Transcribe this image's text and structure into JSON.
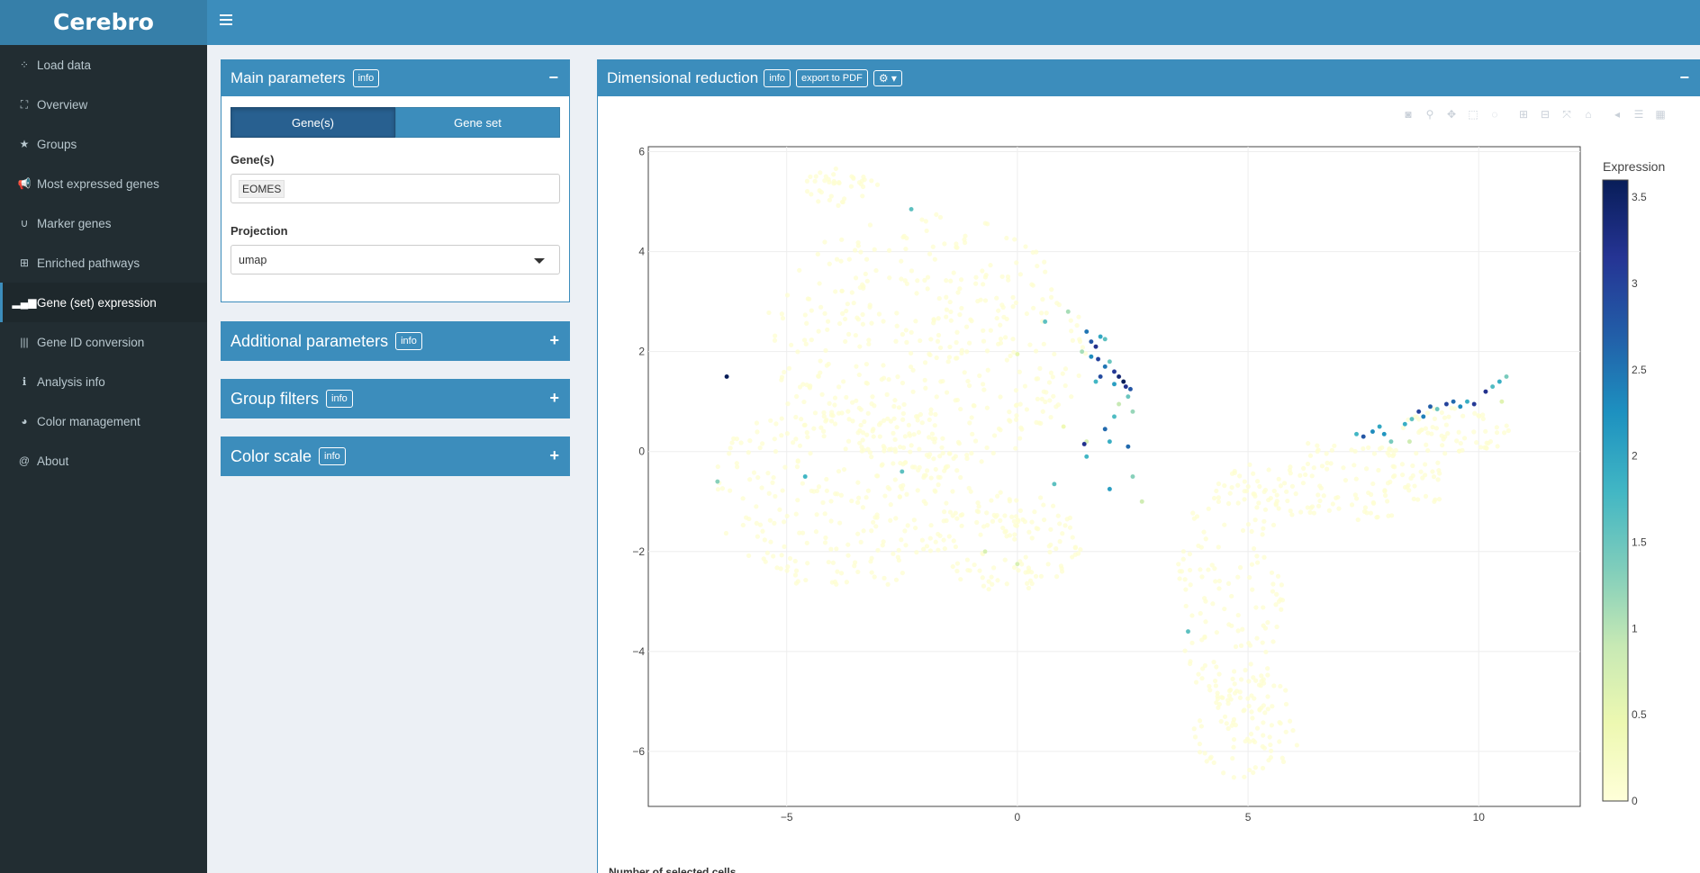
{
  "app": {
    "title": "Cerebro"
  },
  "sidebar": {
    "items": [
      {
        "label": "Load data",
        "icon": "spinner-icon",
        "glyph": "⁘",
        "active": false
      },
      {
        "label": "Overview",
        "icon": "binoculars-icon",
        "glyph": "⛶",
        "active": false
      },
      {
        "label": "Groups",
        "icon": "star-icon",
        "glyph": "★",
        "active": false
      },
      {
        "label": "Most expressed genes",
        "icon": "bullhorn-icon",
        "glyph": "📢",
        "active": false
      },
      {
        "label": "Marker genes",
        "icon": "magnet-icon",
        "glyph": "∪",
        "active": false
      },
      {
        "label": "Enriched pathways",
        "icon": "sitemap-icon",
        "glyph": "⊞",
        "active": false
      },
      {
        "label": "Gene (set) expression",
        "icon": "signal-icon",
        "glyph": "▂▄▆",
        "active": true
      },
      {
        "label": "Gene ID conversion",
        "icon": "barcode-icon",
        "glyph": "|||",
        "active": false
      },
      {
        "label": "Analysis info",
        "icon": "info-icon",
        "glyph": "ℹ",
        "active": false
      },
      {
        "label": "Color management",
        "icon": "palette-icon",
        "glyph": "◕",
        "active": false
      },
      {
        "label": "About",
        "icon": "at-icon",
        "glyph": "@",
        "active": false
      }
    ]
  },
  "main_params": {
    "title": "Main parameters",
    "info": "info",
    "collapse": "−",
    "toggle": {
      "genes": "Gene(s)",
      "gene_set": "Gene set",
      "selected": "genes"
    },
    "genes_label": "Gene(s)",
    "genes_value": "EOMES",
    "projection_label": "Projection",
    "projection_value": "umap"
  },
  "additional_params": {
    "title": "Additional parameters",
    "info": "info",
    "expand": "+"
  },
  "group_filters": {
    "title": "Group filters",
    "info": "info",
    "expand": "+"
  },
  "color_scale": {
    "title": "Color scale",
    "info": "info",
    "expand": "+"
  },
  "dimred": {
    "title": "Dimensional reduction",
    "info": "info",
    "export": "export to PDF",
    "collapse": "−",
    "below_text": "Number of selected cells"
  },
  "modebar_icons": [
    "camera-icon",
    "zoom-icon",
    "pan-icon",
    "box-select-icon",
    "lasso-icon",
    "zoom-in-icon",
    "zoom-out-icon",
    "autoscale-icon",
    "reset-axes-icon",
    "hover-closest-icon",
    "hover-compare-icon",
    "plotly-logo-icon"
  ],
  "colors": {
    "header": "#3c8dbc",
    "header_dark": "#367fa9",
    "sidebar": "#222d32",
    "colorscale": [
      "#ffffd9",
      "#edf8b1",
      "#c7e9b4",
      "#7fcdbb",
      "#41b6c4",
      "#1d91c0",
      "#225ea8",
      "#253494",
      "#081d58"
    ]
  },
  "chart_data": {
    "type": "scatter",
    "title": "",
    "xlabel": "",
    "ylabel": "",
    "xlim": [
      -8.0,
      12.2
    ],
    "ylim": [
      -7.1,
      6.1
    ],
    "xticks": [
      -5,
      0,
      5,
      10
    ],
    "yticks": [
      -6,
      -4,
      -2,
      0,
      2,
      4,
      6
    ],
    "grid": true,
    "colorbar": {
      "title": "Expression",
      "min": 0,
      "max": 3.6,
      "ticks": [
        0,
        0.5,
        1,
        1.5,
        2,
        2.5,
        3,
        3.5
      ]
    },
    "background_clusters": [
      {
        "cx": -2.0,
        "cy": 2.2,
        "rx": 3.5,
        "ry": 2.6,
        "n": 420
      },
      {
        "cx": -3.8,
        "cy": -0.8,
        "rx": 2.8,
        "ry": 2.0,
        "n": 260
      },
      {
        "cx": -0.2,
        "cy": -1.8,
        "rx": 1.6,
        "ry": 1.0,
        "n": 120
      },
      {
        "cx": 4.6,
        "cy": -2.8,
        "rx": 1.2,
        "ry": 2.4,
        "n": 140
      },
      {
        "cx": 5.0,
        "cy": -5.5,
        "rx": 1.2,
        "ry": 1.1,
        "n": 90
      },
      {
        "cx": 7.0,
        "cy": -0.6,
        "rx": 2.4,
        "ry": 0.8,
        "n": 150
      },
      {
        "cx": 9.5,
        "cy": 0.4,
        "rx": 1.2,
        "ry": 0.5,
        "n": 60
      },
      {
        "cx": -3.8,
        "cy": 5.3,
        "rx": 0.8,
        "ry": 0.4,
        "n": 40
      }
    ],
    "expressed_points": [
      {
        "x": -2.3,
        "y": 4.85,
        "v": 1.6
      },
      {
        "x": -6.3,
        "y": 1.5,
        "v": 3.6
      },
      {
        "x": -6.5,
        "y": -0.6,
        "v": 1.3
      },
      {
        "x": -4.6,
        "y": -0.5,
        "v": 1.8
      },
      {
        "x": -2.5,
        "y": -0.4,
        "v": 1.6
      },
      {
        "x": 0.0,
        "y": 1.95,
        "v": 0.5
      },
      {
        "x": 0.6,
        "y": 2.6,
        "v": 1.6
      },
      {
        "x": 1.1,
        "y": 2.8,
        "v": 1.1
      },
      {
        "x": 1.5,
        "y": 2.4,
        "v": 2.5
      },
      {
        "x": 1.6,
        "y": 2.2,
        "v": 2.8
      },
      {
        "x": 1.7,
        "y": 2.1,
        "v": 3.2
      },
      {
        "x": 1.8,
        "y": 2.3,
        "v": 2.0
      },
      {
        "x": 1.9,
        "y": 2.25,
        "v": 1.6
      },
      {
        "x": 1.4,
        "y": 2.0,
        "v": 1.1
      },
      {
        "x": 1.6,
        "y": 1.9,
        "v": 2.3
      },
      {
        "x": 1.75,
        "y": 1.85,
        "v": 3.0
      },
      {
        "x": 2.0,
        "y": 1.8,
        "v": 1.5
      },
      {
        "x": 1.9,
        "y": 1.7,
        "v": 2.5
      },
      {
        "x": 2.1,
        "y": 1.6,
        "v": 3.1
      },
      {
        "x": 2.2,
        "y": 1.5,
        "v": 3.4
      },
      {
        "x": 2.3,
        "y": 1.4,
        "v": 3.6
      },
      {
        "x": 2.35,
        "y": 1.3,
        "v": 3.2
      },
      {
        "x": 2.45,
        "y": 1.25,
        "v": 2.8
      },
      {
        "x": 2.1,
        "y": 1.35,
        "v": 2.1
      },
      {
        "x": 1.8,
        "y": 1.5,
        "v": 2.9
      },
      {
        "x": 1.7,
        "y": 1.4,
        "v": 1.8
      },
      {
        "x": 2.4,
        "y": 1.1,
        "v": 1.5
      },
      {
        "x": 2.2,
        "y": 0.95,
        "v": 0.9
      },
      {
        "x": 2.5,
        "y": 0.8,
        "v": 1.2
      },
      {
        "x": 2.1,
        "y": 0.7,
        "v": 1.7
      },
      {
        "x": 1.9,
        "y": 0.45,
        "v": 2.6
      },
      {
        "x": 2.4,
        "y": 0.1,
        "v": 2.6
      },
      {
        "x": 1.5,
        "y": 0.2,
        "v": 0.7
      },
      {
        "x": 2.0,
        "y": 0.2,
        "v": 1.9
      },
      {
        "x": 1.5,
        "y": -0.1,
        "v": 1.8
      },
      {
        "x": 1.0,
        "y": 0.5,
        "v": 0.4
      },
      {
        "x": 1.45,
        "y": 0.15,
        "v": 3.2
      },
      {
        "x": 0.8,
        "y": -0.65,
        "v": 1.6
      },
      {
        "x": 2.5,
        "y": -0.5,
        "v": 1.3
      },
      {
        "x": 2.0,
        "y": -0.75,
        "v": 2.1
      },
      {
        "x": 2.7,
        "y": -1.0,
        "v": 0.8
      },
      {
        "x": 3.7,
        "y": -3.6,
        "v": 1.6
      },
      {
        "x": -0.7,
        "y": -2.0,
        "v": 0.7
      },
      {
        "x": 0.0,
        "y": -2.25,
        "v": 0.7
      },
      {
        "x": 7.35,
        "y": 0.35,
        "v": 1.8
      },
      {
        "x": 7.5,
        "y": 0.3,
        "v": 2.8
      },
      {
        "x": 7.7,
        "y": 0.4,
        "v": 2.3
      },
      {
        "x": 7.85,
        "y": 0.5,
        "v": 2.0
      },
      {
        "x": 7.95,
        "y": 0.35,
        "v": 2.2
      },
      {
        "x": 8.1,
        "y": 0.2,
        "v": 1.4
      },
      {
        "x": 8.4,
        "y": 0.55,
        "v": 1.9
      },
      {
        "x": 8.55,
        "y": 0.65,
        "v": 1.6
      },
      {
        "x": 8.7,
        "y": 0.8,
        "v": 3.0
      },
      {
        "x": 8.8,
        "y": 0.7,
        "v": 2.4
      },
      {
        "x": 8.95,
        "y": 0.9,
        "v": 2.7
      },
      {
        "x": 9.1,
        "y": 0.85,
        "v": 1.5
      },
      {
        "x": 9.3,
        "y": 0.95,
        "v": 3.0
      },
      {
        "x": 9.45,
        "y": 1.0,
        "v": 2.6
      },
      {
        "x": 9.6,
        "y": 0.9,
        "v": 2.3
      },
      {
        "x": 9.75,
        "y": 1.0,
        "v": 1.9
      },
      {
        "x": 9.9,
        "y": 0.95,
        "v": 3.1
      },
      {
        "x": 10.15,
        "y": 1.2,
        "v": 3.2
      },
      {
        "x": 10.3,
        "y": 1.3,
        "v": 1.7
      },
      {
        "x": 10.45,
        "y": 1.4,
        "v": 1.9
      },
      {
        "x": 10.6,
        "y": 1.5,
        "v": 1.4
      },
      {
        "x": 8.5,
        "y": 0.2,
        "v": 0.8
      },
      {
        "x": 10.5,
        "y": 1.0,
        "v": 0.6
      }
    ]
  }
}
